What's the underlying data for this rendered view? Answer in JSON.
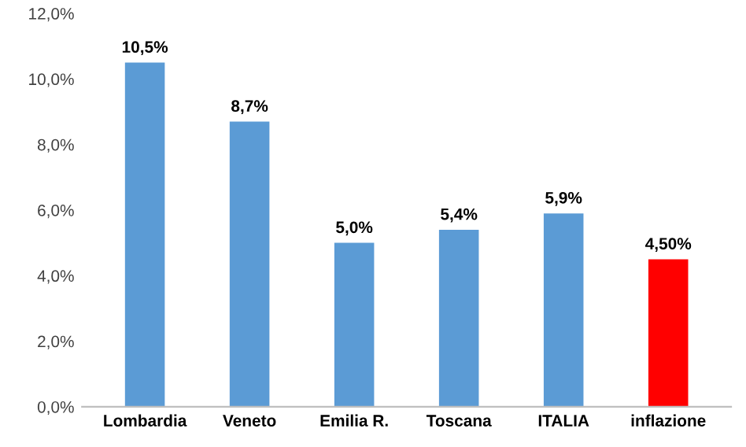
{
  "chart_data": {
    "type": "bar",
    "categories": [
      "Lombardia",
      "Veneto",
      "Emilia R.",
      "Toscana",
      "ITALIA",
      "inflazione"
    ],
    "values": [
      10.5,
      8.7,
      5.0,
      5.4,
      5.9,
      4.5
    ],
    "colors": [
      "#5b9bd5",
      "#5b9bd5",
      "#5b9bd5",
      "#5b9bd5",
      "#5b9bd5",
      "#ff0000"
    ],
    "value_labels": [
      "10,5%",
      "8,7%",
      "5,0%",
      "5,4%",
      "5,9%",
      "4,50%"
    ],
    "ylim": [
      0,
      12
    ],
    "yticks": [
      {
        "value": 0,
        "label": "0,0%"
      },
      {
        "value": 2,
        "label": "2,0%"
      },
      {
        "value": 4,
        "label": "4,0%"
      },
      {
        "value": 6,
        "label": "6,0%"
      },
      {
        "value": 8,
        "label": "8,0%"
      },
      {
        "value": 10,
        "label": "10,0%"
      },
      {
        "value": 12,
        "label": "12,0%"
      }
    ],
    "grid": false,
    "legend": false
  }
}
